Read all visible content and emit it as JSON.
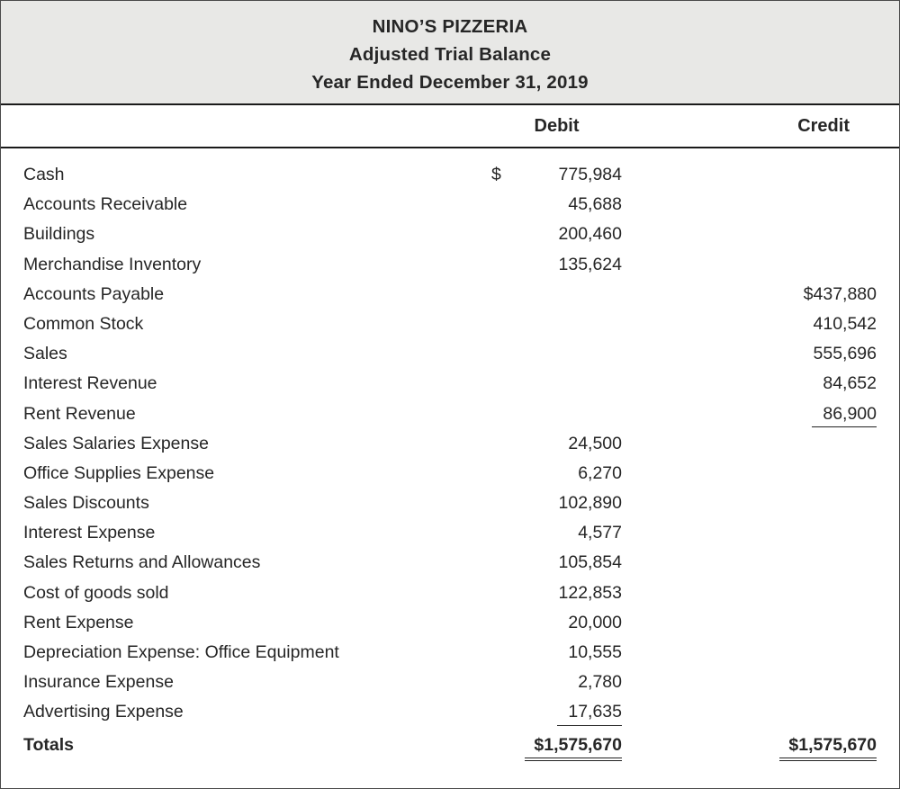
{
  "header": {
    "company": "NINO’S PIZZERIA",
    "statement": "Adjusted Trial Balance",
    "period": "Year Ended December 31, 2019"
  },
  "columns": {
    "debit": "Debit",
    "credit": "Credit"
  },
  "rows": [
    {
      "account": "Cash",
      "dollar_sign": "$",
      "debit": "775,984",
      "credit": ""
    },
    {
      "account": "Accounts Receivable",
      "dollar_sign": "",
      "debit": "45,688",
      "credit": ""
    },
    {
      "account": "Buildings",
      "dollar_sign": "",
      "debit": "200,460",
      "credit": ""
    },
    {
      "account": "Merchandise Inventory",
      "dollar_sign": "",
      "debit": "135,624",
      "credit": ""
    },
    {
      "account": "Accounts Payable",
      "dollar_sign": "",
      "debit": "",
      "credit": "$437,880"
    },
    {
      "account": "Common Stock",
      "dollar_sign": "",
      "debit": "",
      "credit": "410,542"
    },
    {
      "account": "Sales",
      "dollar_sign": "",
      "debit": "",
      "credit": "555,696"
    },
    {
      "account": "Interest Revenue",
      "dollar_sign": "",
      "debit": "",
      "credit": "84,652"
    },
    {
      "account": "Rent Revenue",
      "dollar_sign": "",
      "debit": "",
      "credit": "86,900",
      "credit_underline": true
    },
    {
      "account": "Sales Salaries Expense",
      "dollar_sign": "",
      "debit": "24,500",
      "credit": ""
    },
    {
      "account": "Office Supplies Expense",
      "dollar_sign": "",
      "debit": "6,270",
      "credit": ""
    },
    {
      "account": "Sales Discounts",
      "dollar_sign": "",
      "debit": "102,890",
      "credit": ""
    },
    {
      "account": "Interest Expense",
      "dollar_sign": "",
      "debit": "4,577",
      "credit": ""
    },
    {
      "account": "Sales Returns and Allowances",
      "dollar_sign": "",
      "debit": "105,854",
      "credit": ""
    },
    {
      "account": "Cost of goods sold",
      "dollar_sign": "",
      "debit": "122,853",
      "credit": ""
    },
    {
      "account": "Rent Expense",
      "dollar_sign": "",
      "debit": "20,000",
      "credit": ""
    },
    {
      "account": "Depreciation Expense: Office Equipment",
      "dollar_sign": "",
      "debit": "10,555",
      "credit": ""
    },
    {
      "account": "Insurance Expense",
      "dollar_sign": "",
      "debit": "2,780",
      "credit": ""
    },
    {
      "account": "Advertising Expense",
      "dollar_sign": "",
      "debit": "17,635",
      "credit": "",
      "debit_underline": true
    }
  ],
  "totals": {
    "label": "Totals",
    "debit": "$1,575,670",
    "credit": "$1,575,670"
  },
  "colors": {
    "header_background": "#e8e8e6",
    "text": "#262626",
    "rule": "#1a1a1a"
  }
}
